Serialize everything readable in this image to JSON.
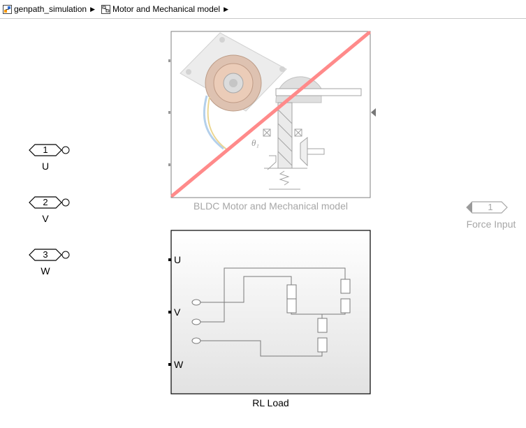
{
  "breadcrumb": {
    "items": [
      {
        "label": "genpath_simulation",
        "icon": "model-icon"
      },
      {
        "label": "Motor and Mechanical model",
        "icon": "subsystem-icon"
      }
    ]
  },
  "ports": {
    "inputs": [
      {
        "number": "1",
        "name": "U"
      },
      {
        "number": "2",
        "name": "V"
      },
      {
        "number": "3",
        "name": "W"
      }
    ],
    "force": {
      "number": "1",
      "name": "Force Input"
    }
  },
  "blocks": {
    "bldc": {
      "name": "BLDC Motor and Mechanical model",
      "status": "commented-out",
      "theta_label": "θ₁"
    },
    "rl": {
      "name": "RL Load",
      "port_labels": [
        "U",
        "V",
        "W"
      ]
    }
  },
  "colors": {
    "strike": "#ff8080",
    "port_fill": "#ffffff",
    "disabled_text": "#a6a6a6"
  }
}
